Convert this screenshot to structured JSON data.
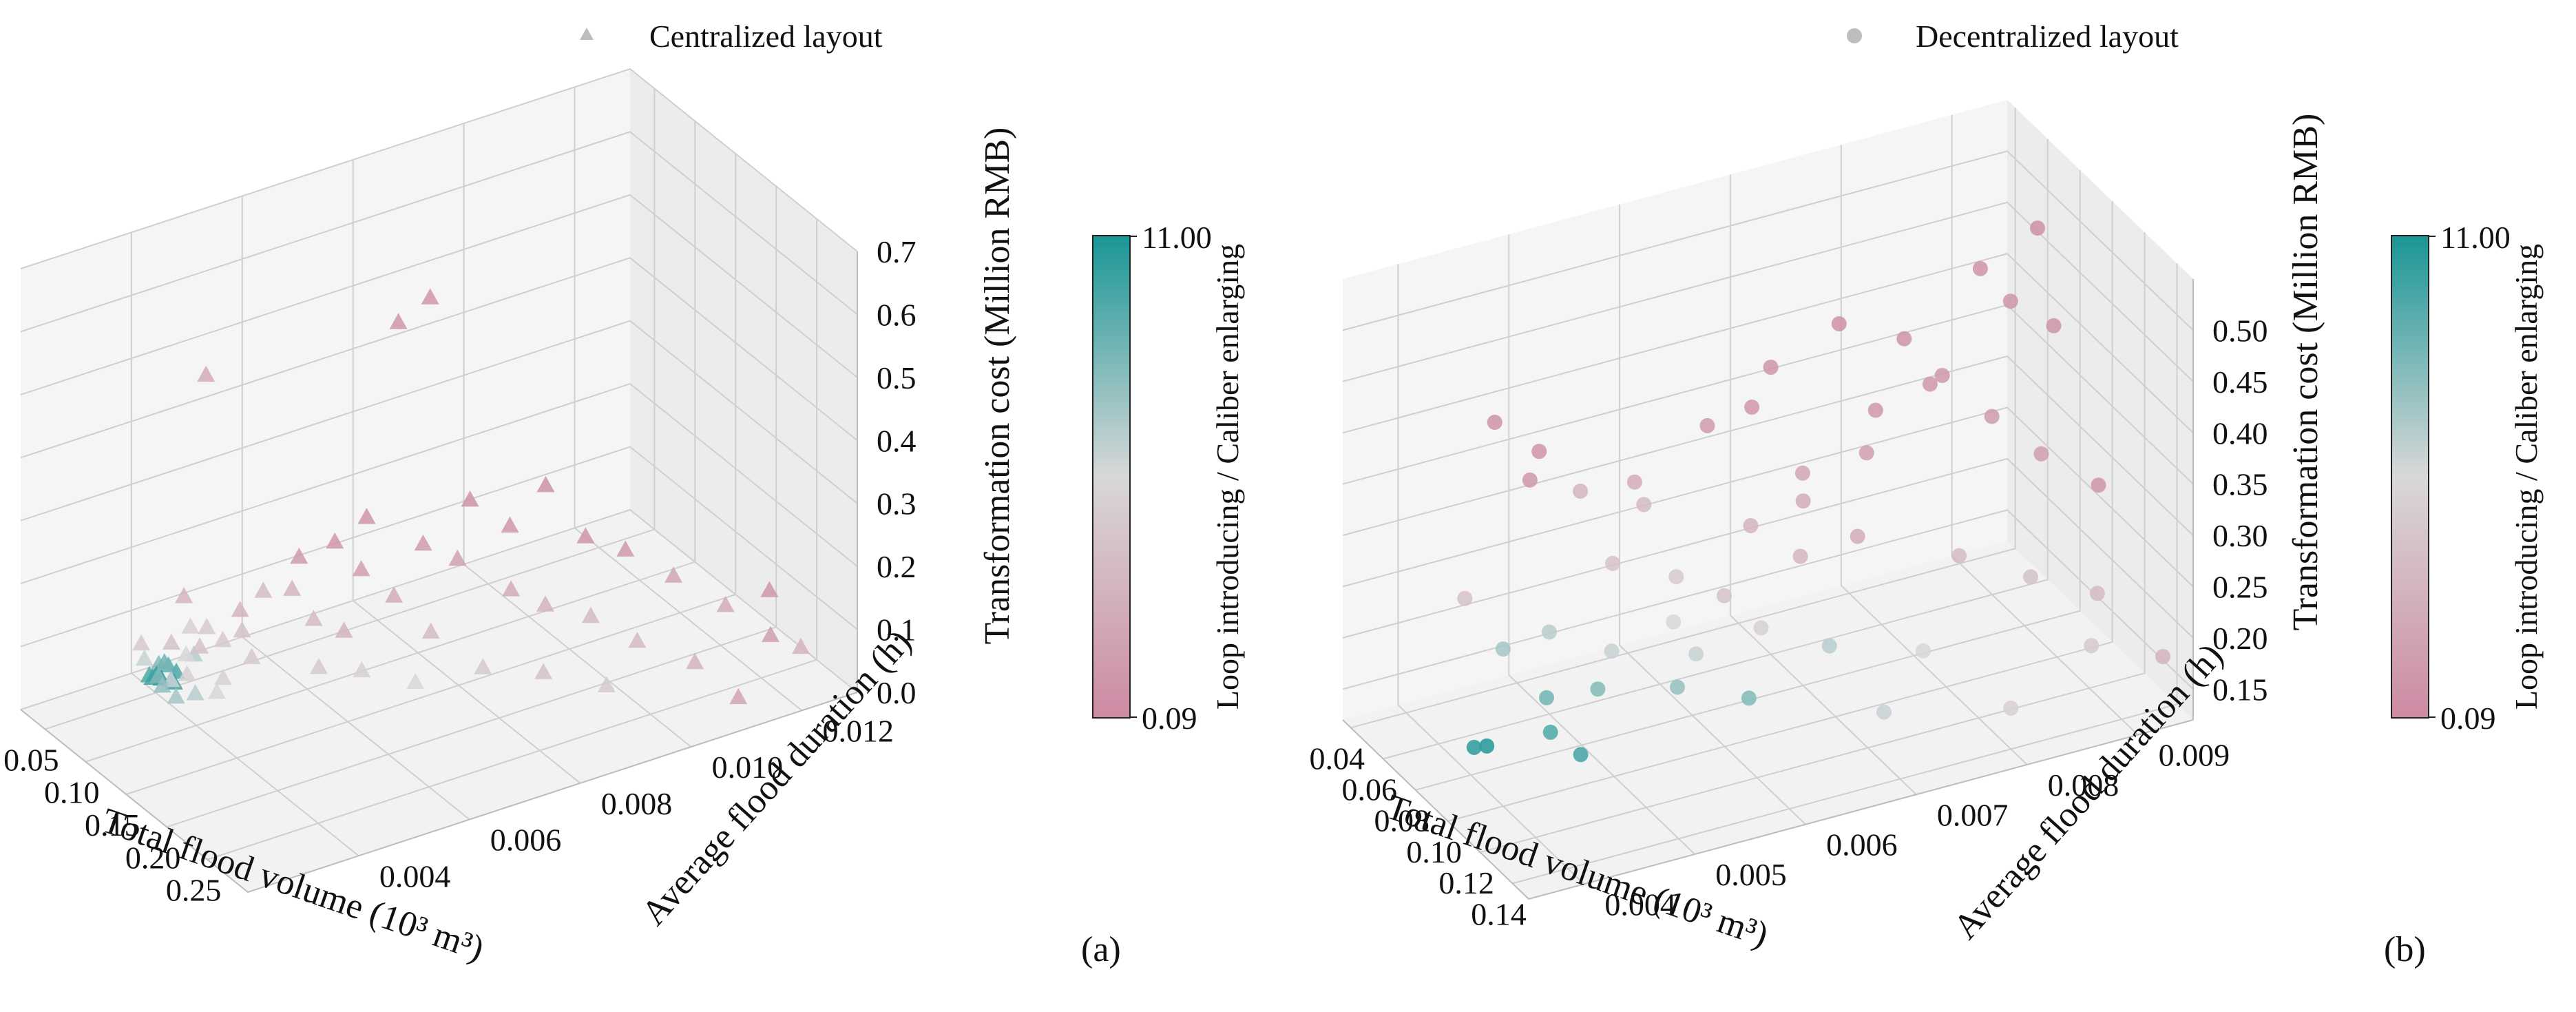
{
  "charts": [
    {
      "panel_label": "(a)",
      "legend": {
        "label": "Centralized layout",
        "marker": "triangle"
      },
      "xlabel": "Total flood volume (10³ m³)",
      "ylabel": "Average flood duration (h)",
      "zlabel": "Transformation cost (Million RMB)",
      "colorbar": {
        "label": "Loop introducing / Caliber enlarging",
        "min_label": "0.09",
        "max_label": "11.00"
      }
    },
    {
      "panel_label": "(b)",
      "legend": {
        "label": "Decentralized layout",
        "marker": "circle"
      },
      "xlabel": "Total flood volume (10³ m³)",
      "ylabel": "Average flood duration (h)",
      "zlabel": "Transformation cost (Million RMB)",
      "colorbar": {
        "label": "Loop introducing / Caliber enlarging",
        "min_label": "0.09",
        "max_label": "11.00"
      }
    }
  ],
  "colors": {
    "low": "#cd8aa3",
    "mid": "#d8d8d8",
    "high": "#1a9696",
    "pane": "#f2f2f2",
    "grid": "#cfcfcf",
    "legend_marker": "#bdbdbd"
  },
  "chart_data": [
    {
      "type": "scatter3d",
      "title": "Centralized layout",
      "xlabel": "Total flood volume (10³ m³)",
      "ylabel": "Average flood duration (h)",
      "zlabel": "Transformation cost (Million RMB)",
      "xlim": [
        0.02,
        0.3
      ],
      "ylim": [
        0.002,
        0.013
      ],
      "zlim": [
        0,
        0.7
      ],
      "xticks": [
        0.05,
        0.1,
        0.15,
        0.2,
        0.25
      ],
      "xtick_labels": [
        "0.05",
        "0.10",
        "0.15",
        "0.20",
        "0.25"
      ],
      "yticks": [
        0.004,
        0.006,
        0.008,
        0.01,
        0.012
      ],
      "ytick_labels": [
        "0.004",
        "0.006",
        "0.008",
        "0.010",
        "0.012"
      ],
      "zticks": [
        0,
        0.1,
        0.2,
        0.3,
        0.4,
        0.5,
        0.6,
        0.7
      ],
      "ztick_labels": [
        "0.0",
        "0.1",
        "0.2",
        "0.3",
        "0.4",
        "0.5",
        "0.6",
        "0.7"
      ],
      "colorbar": {
        "range": [
          0.09,
          11.0
        ],
        "label": "Loop introducing / Caliber enlarging"
      },
      "points": [
        {
          "x": 0.03,
          "y": 0.0052,
          "z": 0.45,
          "c": 2.5
        },
        {
          "x": 0.03,
          "y": 0.0048,
          "z": 0.11,
          "c": 3.0
        },
        {
          "x": 0.032,
          "y": 0.004,
          "z": 0.06,
          "c": 4.5
        },
        {
          "x": 0.035,
          "y": 0.0045,
          "z": 0.05,
          "c": 4.0
        },
        {
          "x": 0.036,
          "y": 0.004,
          "z": 0.04,
          "c": 6.0
        },
        {
          "x": 0.038,
          "y": 0.0048,
          "z": 0.07,
          "c": 5.0
        },
        {
          "x": 0.04,
          "y": 0.0042,
          "z": 0.03,
          "c": 8.0
        },
        {
          "x": 0.042,
          "y": 0.004,
          "z": 0.02,
          "c": 9.5
        },
        {
          "x": 0.044,
          "y": 0.0041,
          "z": 0.02,
          "c": 10.5
        },
        {
          "x": 0.045,
          "y": 0.0043,
          "z": 0.03,
          "c": 9.0
        },
        {
          "x": 0.046,
          "y": 0.004,
          "z": 0.02,
          "c": 10.0
        },
        {
          "x": 0.047,
          "y": 0.0042,
          "z": 0.04,
          "c": 8.5
        },
        {
          "x": 0.048,
          "y": 0.0044,
          "z": 0.02,
          "c": 9.5
        },
        {
          "x": 0.05,
          "y": 0.0041,
          "z": 0.02,
          "c": 10.8
        },
        {
          "x": 0.052,
          "y": 0.0043,
          "z": 0.01,
          "c": 10.0
        },
        {
          "x": 0.053,
          "y": 0.004,
          "z": 0.03,
          "c": 8.0
        },
        {
          "x": 0.055,
          "y": 0.0042,
          "z": 0.02,
          "c": 9.0
        },
        {
          "x": 0.056,
          "y": 0.0046,
          "z": 0.05,
          "c": 6.5
        },
        {
          "x": 0.058,
          "y": 0.004,
          "z": 0.02,
          "c": 7.5
        },
        {
          "x": 0.06,
          "y": 0.0044,
          "z": 0.06,
          "c": 5.5
        },
        {
          "x": 0.062,
          "y": 0.0041,
          "z": 0.03,
          "c": 6.0
        },
        {
          "x": 0.065,
          "y": 0.0047,
          "z": 0.1,
          "c": 4.5
        },
        {
          "x": 0.068,
          "y": 0.0043,
          "z": 0.04,
          "c": 5.0
        },
        {
          "x": 0.07,
          "y": 0.0045,
          "z": 0.08,
          "c": 4.0
        },
        {
          "x": 0.072,
          "y": 0.0052,
          "z": 0.12,
          "c": 3.0
        },
        {
          "x": 0.075,
          "y": 0.004,
          "z": 0.02,
          "c": 7.0
        },
        {
          "x": 0.078,
          "y": 0.0048,
          "z": 0.09,
          "c": 4.5
        },
        {
          "x": 0.08,
          "y": 0.0055,
          "z": 0.15,
          "c": 3.5
        },
        {
          "x": 0.085,
          "y": 0.0042,
          "z": 0.03,
          "c": 6.5
        },
        {
          "x": 0.088,
          "y": 0.005,
          "z": 0.11,
          "c": 4.0
        },
        {
          "x": 0.09,
          "y": 0.006,
          "z": 0.2,
          "c": 1.2
        },
        {
          "x": 0.092,
          "y": 0.0046,
          "z": 0.05,
          "c": 5.0
        },
        {
          "x": 0.095,
          "y": 0.0058,
          "z": 0.16,
          "c": 3.0
        },
        {
          "x": 0.098,
          "y": 0.0044,
          "z": 0.04,
          "c": 5.5
        },
        {
          "x": 0.1,
          "y": 0.0065,
          "z": 0.22,
          "c": 1.0
        },
        {
          "x": 0.1,
          "y": 0.005,
          "z": 0.08,
          "c": 4.5
        },
        {
          "x": 0.105,
          "y": 0.007,
          "z": 0.25,
          "c": 0.8
        },
        {
          "x": 0.108,
          "y": 0.006,
          "z": 0.12,
          "c": 3.5
        },
        {
          "x": 0.11,
          "y": 0.0075,
          "z": 0.55,
          "c": 1.0
        },
        {
          "x": 0.115,
          "y": 0.008,
          "z": 0.58,
          "c": 0.9
        },
        {
          "x": 0.112,
          "y": 0.0068,
          "z": 0.18,
          "c": 1.5
        },
        {
          "x": 0.118,
          "y": 0.0064,
          "z": 0.1,
          "c": 3.0
        },
        {
          "x": 0.12,
          "y": 0.0078,
          "z": 0.2,
          "c": 1.3
        },
        {
          "x": 0.125,
          "y": 0.0072,
          "z": 0.14,
          "c": 2.5
        },
        {
          "x": 0.128,
          "y": 0.0058,
          "z": 0.07,
          "c": 4.5
        },
        {
          "x": 0.13,
          "y": 0.0085,
          "z": 0.26,
          "c": 0.7
        },
        {
          "x": 0.135,
          "y": 0.0082,
          "z": 0.18,
          "c": 1.6
        },
        {
          "x": 0.14,
          "y": 0.0064,
          "z": 0.06,
          "c": 5.0
        },
        {
          "x": 0.145,
          "y": 0.009,
          "z": 0.22,
          "c": 0.9
        },
        {
          "x": 0.15,
          "y": 0.0075,
          "z": 0.1,
          "c": 3.5
        },
        {
          "x": 0.155,
          "y": 0.0095,
          "z": 0.28,
          "c": 0.6
        },
        {
          "x": 0.16,
          "y": 0.0088,
          "z": 0.14,
          "c": 2.5
        },
        {
          "x": 0.165,
          "y": 0.007,
          "z": 0.05,
          "c": 5.5
        },
        {
          "x": 0.17,
          "y": 0.01,
          "z": 0.2,
          "c": 1.0
        },
        {
          "x": 0.175,
          "y": 0.0092,
          "z": 0.12,
          "c": 3.0
        },
        {
          "x": 0.18,
          "y": 0.008,
          "z": 0.06,
          "c": 4.5
        },
        {
          "x": 0.185,
          "y": 0.0105,
          "z": 0.18,
          "c": 1.2
        },
        {
          "x": 0.19,
          "y": 0.0098,
          "z": 0.1,
          "c": 3.5
        },
        {
          "x": 0.2,
          "y": 0.0088,
          "z": 0.05,
          "c": 4.0
        },
        {
          "x": 0.21,
          "y": 0.011,
          "z": 0.15,
          "c": 2.0
        },
        {
          "x": 0.22,
          "y": 0.0102,
          "z": 0.08,
          "c": 3.5
        },
        {
          "x": 0.23,
          "y": 0.0095,
          "z": 0.04,
          "c": 4.5
        },
        {
          "x": 0.24,
          "y": 0.0115,
          "z": 0.12,
          "c": 2.5
        },
        {
          "x": 0.25,
          "y": 0.0108,
          "z": 0.06,
          "c": 3.0
        },
        {
          "x": 0.26,
          "y": 0.012,
          "z": 0.15,
          "c": 1.0
        },
        {
          "x": 0.275,
          "y": 0.0118,
          "z": 0.1,
          "c": 1.5
        },
        {
          "x": 0.285,
          "y": 0.0122,
          "z": 0.08,
          "c": 3.0
        },
        {
          "x": 0.29,
          "y": 0.011,
          "z": 0.04,
          "c": 2.0
        }
      ]
    },
    {
      "type": "scatter3d",
      "title": "Decentralized layout",
      "xlabel": "Total flood volume (10³ m³)",
      "ylabel": "Average flood duration (h)",
      "zlabel": "Transformation cost (Million RMB)",
      "xlim": [
        0.035,
        0.15
      ],
      "ylim": [
        0.0035,
        0.0095
      ],
      "zlim": [
        0.12,
        0.55
      ],
      "xticks": [
        0.04,
        0.06,
        0.08,
        0.1,
        0.12,
        0.14
      ],
      "xtick_labels": [
        "0.04",
        "0.06",
        "0.08",
        "0.10",
        "0.12",
        "0.14"
      ],
      "yticks": [
        0.004,
        0.005,
        0.006,
        0.007,
        0.008,
        0.009
      ],
      "ytick_labels": [
        "0.004",
        "0.005",
        "0.006",
        "0.007",
        "0.008",
        "0.009"
      ],
      "zticks": [
        0.15,
        0.2,
        0.25,
        0.3,
        0.35,
        0.4,
        0.45,
        0.5
      ],
      "ztick_labels": [
        "0.15",
        "0.20",
        "0.25",
        "0.30",
        "0.35",
        "0.40",
        "0.45",
        "0.50"
      ],
      "colorbar": {
        "range": [
          0.09,
          11.0
        ],
        "label": "Loop introducing / Caliber enlarging"
      },
      "points": [
        {
          "x": 0.04,
          "y": 0.0048,
          "z": 0.38,
          "c": 0.6
        },
        {
          "x": 0.04,
          "y": 0.0052,
          "z": 0.34,
          "c": 0.7
        },
        {
          "x": 0.042,
          "y": 0.0045,
          "z": 0.22,
          "c": 4.0
        },
        {
          "x": 0.045,
          "y": 0.0055,
          "z": 0.3,
          "c": 3.0
        },
        {
          "x": 0.048,
          "y": 0.005,
          "z": 0.33,
          "c": 0.9
        },
        {
          "x": 0.05,
          "y": 0.006,
          "z": 0.28,
          "c": 3.5
        },
        {
          "x": 0.052,
          "y": 0.0047,
          "z": 0.18,
          "c": 7.0
        },
        {
          "x": 0.055,
          "y": 0.0065,
          "z": 0.35,
          "c": 1.2
        },
        {
          "x": 0.058,
          "y": 0.0058,
          "z": 0.32,
          "c": 2.5
        },
        {
          "x": 0.06,
          "y": 0.007,
          "z": 0.4,
          "c": 0.8
        },
        {
          "x": 0.06,
          "y": 0.005,
          "z": 0.2,
          "c": 6.5
        },
        {
          "x": 0.062,
          "y": 0.0068,
          "z": 0.37,
          "c": 0.9
        },
        {
          "x": 0.065,
          "y": 0.0055,
          "z": 0.26,
          "c": 4.0
        },
        {
          "x": 0.066,
          "y": 0.0072,
          "z": 0.3,
          "c": 2.0
        },
        {
          "x": 0.068,
          "y": 0.0075,
          "z": 0.44,
          "c": 0.6
        },
        {
          "x": 0.07,
          "y": 0.006,
          "z": 0.24,
          "c": 4.5
        },
        {
          "x": 0.07,
          "y": 0.0078,
          "z": 0.35,
          "c": 1.0
        },
        {
          "x": 0.072,
          "y": 0.0048,
          "z": 0.16,
          "c": 8.5
        },
        {
          "x": 0.074,
          "y": 0.008,
          "z": 0.42,
          "c": 0.7
        },
        {
          "x": 0.075,
          "y": 0.0066,
          "z": 0.28,
          "c": 3.0
        },
        {
          "x": 0.077,
          "y": 0.0083,
          "z": 0.38,
          "c": 1.1
        },
        {
          "x": 0.078,
          "y": 0.0053,
          "z": 0.2,
          "c": 6.0
        },
        {
          "x": 0.08,
          "y": 0.0086,
          "z": 0.48,
          "c": 0.5
        },
        {
          "x": 0.08,
          "y": 0.007,
          "z": 0.3,
          "c": 2.5
        },
        {
          "x": 0.082,
          "y": 0.0058,
          "z": 0.22,
          "c": 5.5
        },
        {
          "x": 0.082,
          "y": 0.004,
          "z": 0.15,
          "c": 10.5
        },
        {
          "x": 0.083,
          "y": 0.0041,
          "z": 0.15,
          "c": 10.8
        },
        {
          "x": 0.085,
          "y": 0.0088,
          "z": 0.45,
          "c": 0.8
        },
        {
          "x": 0.085,
          "y": 0.0075,
          "z": 0.34,
          "c": 1.5
        },
        {
          "x": 0.086,
          "y": 0.0062,
          "z": 0.24,
          "c": 4.0
        },
        {
          "x": 0.088,
          "y": 0.009,
          "z": 0.52,
          "c": 0.6
        },
        {
          "x": 0.09,
          "y": 0.005,
          "z": 0.19,
          "c": 8.0
        },
        {
          "x": 0.09,
          "y": 0.008,
          "z": 0.4,
          "c": 0.9
        },
        {
          "x": 0.092,
          "y": 0.0068,
          "z": 0.27,
          "c": 3.0
        },
        {
          "x": 0.094,
          "y": 0.0085,
          "z": 0.36,
          "c": 1.2
        },
        {
          "x": 0.095,
          "y": 0.0045,
          "z": 0.17,
          "c": 9.5
        },
        {
          "x": 0.096,
          "y": 0.0058,
          "z": 0.21,
          "c": 6.0
        },
        {
          "x": 0.098,
          "y": 0.009,
          "z": 0.44,
          "c": 0.7
        },
        {
          "x": 0.1,
          "y": 0.0072,
          "z": 0.29,
          "c": 2.5
        },
        {
          "x": 0.1,
          "y": 0.0047,
          "z": 0.15,
          "c": 9.8
        },
        {
          "x": 0.102,
          "y": 0.0063,
          "z": 0.23,
          "c": 5.0
        },
        {
          "x": 0.104,
          "y": 0.0088,
          "z": 0.33,
          "c": 1.5
        },
        {
          "x": 0.105,
          "y": 0.0055,
          "z": 0.2,
          "c": 7.5
        },
        {
          "x": 0.108,
          "y": 0.008,
          "z": 0.26,
          "c": 3.5
        },
        {
          "x": 0.11,
          "y": 0.0068,
          "z": 0.21,
          "c": 6.5
        },
        {
          "x": 0.112,
          "y": 0.0092,
          "z": 0.3,
          "c": 0.8
        },
        {
          "x": 0.115,
          "y": 0.006,
          "z": 0.19,
          "c": 8.0
        },
        {
          "x": 0.118,
          "y": 0.0085,
          "z": 0.24,
          "c": 4.0
        },
        {
          "x": 0.12,
          "y": 0.0075,
          "z": 0.2,
          "c": 5.5
        },
        {
          "x": 0.125,
          "y": 0.009,
          "z": 0.22,
          "c": 3.5
        },
        {
          "x": 0.13,
          "y": 0.007,
          "z": 0.17,
          "c": 6.0
        },
        {
          "x": 0.135,
          "y": 0.0088,
          "z": 0.19,
          "c": 4.5
        },
        {
          "x": 0.14,
          "y": 0.008,
          "z": 0.16,
          "c": 5.0
        },
        {
          "x": 0.145,
          "y": 0.0093,
          "z": 0.18,
          "c": 3.0
        }
      ]
    }
  ]
}
